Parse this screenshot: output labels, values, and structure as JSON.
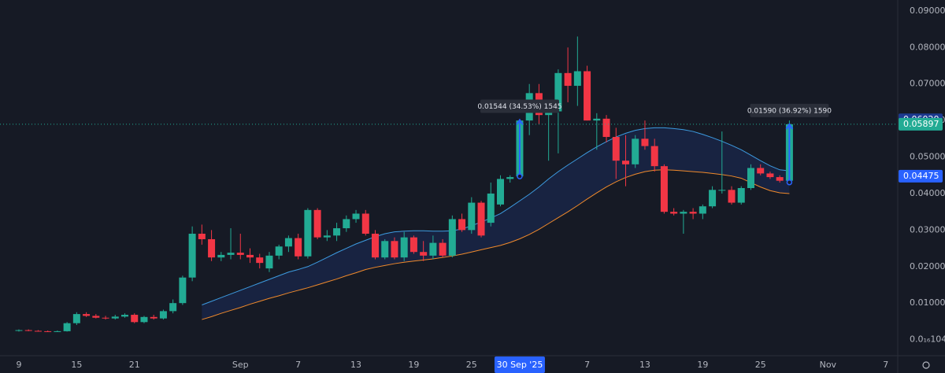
{
  "chart_data": {
    "type": "candlestick",
    "up_color": "#22ab94",
    "down_color": "#f23645",
    "xlim": [
      -1.96,
      91.25
    ],
    "ylim": [
      -0.0044,
      0.093
    ],
    "yticks": [
      {
        "value": 1.04e-17,
        "label": "0.0₁₆1040"
      },
      {
        "value": 0.01,
        "label": "0.01000"
      },
      {
        "value": 0.02,
        "label": "0.02000"
      },
      {
        "value": 0.03,
        "label": "0.03000"
      },
      {
        "value": 0.04,
        "label": "0.04000"
      },
      {
        "value": 0.05,
        "label": "0.05000"
      },
      {
        "value": 0.06,
        "label": "0.06000"
      },
      {
        "value": 0.07,
        "label": "0.07000"
      },
      {
        "value": 0.08,
        "label": "0.08000"
      },
      {
        "value": 0.09,
        "label": "0.09000"
      }
    ],
    "xticks": [
      {
        "value": 0,
        "label": "9"
      },
      {
        "value": 6,
        "label": "15"
      },
      {
        "value": 12,
        "label": "21"
      },
      {
        "value": 23,
        "label": "Sep"
      },
      {
        "value": 29,
        "label": "7"
      },
      {
        "value": 35,
        "label": "13"
      },
      {
        "value": 41,
        "label": "19"
      },
      {
        "value": 47,
        "label": "25"
      },
      {
        "value": 59,
        "label": "7"
      },
      {
        "value": 65,
        "label": "13"
      },
      {
        "value": 71,
        "label": "19"
      },
      {
        "value": 77,
        "label": "25"
      },
      {
        "value": 84,
        "label": "Nov"
      },
      {
        "value": 90,
        "label": "7"
      }
    ],
    "crosshair_x": {
      "value": 52,
      "label": "30 Sep '25"
    },
    "open": [
      0.0025,
      0.0026,
      0.0024,
      0.0023,
      0.0022,
      0.0023,
      0.0045,
      0.007,
      0.0065,
      0.006,
      0.0058,
      0.0063,
      0.0068,
      0.0048,
      0.0062,
      0.0058,
      0.0078,
      0.01,
      0.017,
      0.029,
      0.0275,
      0.0225,
      0.0232,
      0.0238,
      0.0232,
      0.0225,
      0.0195,
      0.023,
      0.0255,
      0.0278,
      0.0228,
      0.0355,
      0.028,
      0.0285,
      0.0305,
      0.033,
      0.0345,
      0.029,
      0.0225,
      0.027,
      0.0225,
      0.028,
      0.024,
      0.023,
      0.0265,
      0.023,
      0.033,
      0.03,
      0.0375,
      0.032,
      0.037,
      0.044,
      0.0447,
      0.06,
      0.0675,
      0.0615,
      0.0625,
      0.073,
      0.0695,
      0.0735,
      0.06,
      0.0605,
      0.0555,
      0.049,
      0.048,
      0.055,
      0.053,
      0.0475,
      0.035,
      0.0345,
      0.035,
      0.0345,
      0.0365,
      0.041,
      0.041,
      0.0375,
      0.0415,
      0.047,
      0.0455,
      0.0445,
      0.0435
    ],
    "high": [
      0.0028,
      0.0028,
      0.0026,
      0.0025,
      0.0025,
      0.0048,
      0.0075,
      0.0075,
      0.007,
      0.0065,
      0.0068,
      0.0072,
      0.0072,
      0.0065,
      0.0068,
      0.0082,
      0.011,
      0.0175,
      0.031,
      0.0315,
      0.03,
      0.024,
      0.0305,
      0.029,
      0.025,
      0.0235,
      0.024,
      0.026,
      0.0285,
      0.029,
      0.036,
      0.036,
      0.03,
      0.032,
      0.034,
      0.0355,
      0.0355,
      0.03,
      0.0275,
      0.028,
      0.0295,
      0.0285,
      0.027,
      0.0285,
      0.0275,
      0.034,
      0.0345,
      0.039,
      0.038,
      0.043,
      0.045,
      0.045,
      0.0603,
      0.07,
      0.07,
      0.065,
      0.074,
      0.08,
      0.083,
      0.075,
      0.062,
      0.0615,
      0.058,
      0.056,
      0.056,
      0.06,
      0.055,
      0.048,
      0.036,
      0.0355,
      0.036,
      0.037,
      0.042,
      0.057,
      0.042,
      0.042,
      0.048,
      0.048,
      0.046,
      0.045,
      0.06
    ],
    "low": [
      0.0022,
      0.0023,
      0.0022,
      0.0021,
      0.0021,
      0.0022,
      0.004,
      0.0062,
      0.0058,
      0.0055,
      0.0055,
      0.006,
      0.0045,
      0.0045,
      0.0055,
      0.0055,
      0.0072,
      0.0095,
      0.016,
      0.026,
      0.0215,
      0.0215,
      0.022,
      0.022,
      0.021,
      0.0195,
      0.0185,
      0.022,
      0.024,
      0.022,
      0.0222,
      0.0275,
      0.027,
      0.027,
      0.0295,
      0.032,
      0.0285,
      0.022,
      0.022,
      0.022,
      0.0215,
      0.0235,
      0.0215,
      0.022,
      0.0225,
      0.0225,
      0.0295,
      0.029,
      0.028,
      0.031,
      0.0365,
      0.043,
      0.044,
      0.056,
      0.059,
      0.049,
      0.051,
      0.065,
      0.064,
      0.06,
      0.052,
      0.054,
      0.044,
      0.042,
      0.047,
      0.052,
      0.046,
      0.0345,
      0.034,
      0.029,
      0.033,
      0.033,
      0.036,
      0.04,
      0.037,
      0.037,
      0.041,
      0.045,
      0.044,
      0.043,
      0.04307
    ],
    "close": [
      0.0026,
      0.0024,
      0.0023,
      0.0022,
      0.0023,
      0.0045,
      0.007,
      0.0065,
      0.006,
      0.0058,
      0.0063,
      0.0068,
      0.0048,
      0.0062,
      0.0058,
      0.0078,
      0.01,
      0.017,
      0.029,
      0.0275,
      0.0225,
      0.0232,
      0.0238,
      0.0232,
      0.0225,
      0.021,
      0.023,
      0.0255,
      0.0278,
      0.0228,
      0.0355,
      0.028,
      0.0285,
      0.0305,
      0.033,
      0.0345,
      0.029,
      0.0225,
      0.027,
      0.0225,
      0.028,
      0.024,
      0.023,
      0.0265,
      0.023,
      0.033,
      0.03,
      0.0375,
      0.0285,
      0.04,
      0.044,
      0.0445,
      0.06,
      0.0675,
      0.0615,
      0.0625,
      0.073,
      0.0695,
      0.0735,
      0.06,
      0.0605,
      0.0555,
      0.049,
      0.048,
      0.055,
      0.053,
      0.0475,
      0.035,
      0.0345,
      0.035,
      0.0345,
      0.0365,
      0.041,
      0.041,
      0.0375,
      0.0415,
      0.047,
      0.0455,
      0.0445,
      0.0435,
      0.05897
    ],
    "bands": {
      "upper_color": "#3d9be0",
      "lower_color": "#f08a2b",
      "fill": "rgba(41,98,255,0.13)",
      "upper": [
        null,
        null,
        null,
        null,
        null,
        null,
        null,
        null,
        null,
        null,
        null,
        null,
        null,
        null,
        null,
        null,
        null,
        null,
        null,
        0.0095,
        0.0105,
        0.0115,
        0.0125,
        0.0135,
        0.0145,
        0.0155,
        0.0165,
        0.0175,
        0.0185,
        0.0192,
        0.02,
        0.0212,
        0.0225,
        0.0238,
        0.025,
        0.0262,
        0.0272,
        0.0282,
        0.029,
        0.0295,
        0.0297,
        0.0298,
        0.0298,
        0.0297,
        0.0297,
        0.0298,
        0.0303,
        0.0312,
        0.0322,
        0.0333,
        0.0345,
        0.0362,
        0.038,
        0.0398,
        0.0418,
        0.044,
        0.046,
        0.0478,
        0.0495,
        0.0512,
        0.0528,
        0.0542,
        0.0555,
        0.0565,
        0.0573,
        0.0578,
        0.058,
        0.058,
        0.0578,
        0.0575,
        0.057,
        0.0562,
        0.0553,
        0.0543,
        0.0532,
        0.052,
        0.0505,
        0.049,
        0.0476,
        0.0465,
        0.0462
      ],
      "lower": [
        null,
        null,
        null,
        null,
        null,
        null,
        null,
        null,
        null,
        null,
        null,
        null,
        null,
        null,
        null,
        null,
        null,
        null,
        null,
        0.0055,
        0.0063,
        0.0072,
        0.008,
        0.0088,
        0.0097,
        0.0105,
        0.0113,
        0.012,
        0.0128,
        0.0135,
        0.0142,
        0.015,
        0.0158,
        0.0166,
        0.0175,
        0.0183,
        0.0192,
        0.0198,
        0.0203,
        0.0208,
        0.0212,
        0.0215,
        0.0218,
        0.0221,
        0.0225,
        0.0229,
        0.0234,
        0.024,
        0.0246,
        0.0252,
        0.0258,
        0.0266,
        0.0276,
        0.0288,
        0.0302,
        0.0318,
        0.0334,
        0.035,
        0.0367,
        0.0385,
        0.0402,
        0.0418,
        0.0432,
        0.0444,
        0.0453,
        0.046,
        0.0464,
        0.0465,
        0.0464,
        0.0462,
        0.046,
        0.0458,
        0.0455,
        0.0452,
        0.0448,
        0.0442,
        0.043,
        0.0418,
        0.0408,
        0.0402,
        0.04
      ]
    },
    "measures": [
      {
        "label": "0.01544 (34.53%) 1545",
        "x": 52,
        "from": 0.04471,
        "to": 0.06015
      },
      {
        "label": "0.01590 (36.92%) 1590",
        "x": 80,
        "from": 0.04307,
        "to": 0.05897
      }
    ],
    "price_labels": [
      {
        "value": 0.0602,
        "label": "0.06020",
        "color": "#1c3a8f"
      },
      {
        "value": 0.05897,
        "label": "0.05897",
        "color": "#22ab94",
        "line": true
      },
      {
        "value": 0.04475,
        "label": "0.04475",
        "color": "#2962ff"
      }
    ]
  }
}
